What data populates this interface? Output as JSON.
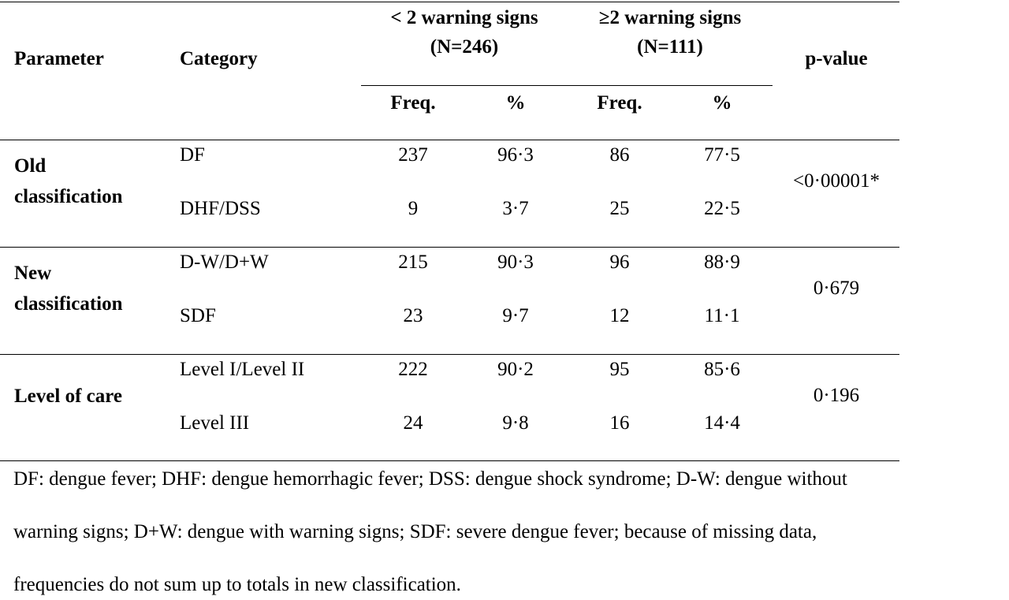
{
  "table": {
    "headers": {
      "parameter": "Parameter",
      "category": "Category",
      "group1_line1": "< 2 warning signs",
      "group1_line2": "(N=246)",
      "group2_line1": "≥2 warning signs",
      "group2_line2": "(N=111)",
      "pvalue": "p-value",
      "freq1": "Freq.",
      "pct1": "%",
      "freq2": "Freq.",
      "pct2": "%"
    },
    "sections": [
      {
        "parameter_line1": "Old",
        "parameter_line2": "classification",
        "pvalue": "<0·00001*",
        "rows": [
          {
            "category": "DF",
            "freq1": "237",
            "pct1": "96·3",
            "freq2": "86",
            "pct2": "77·5"
          },
          {
            "category": "DHF/DSS",
            "freq1": "9",
            "pct1": "3·7",
            "freq2": "25",
            "pct2": "22·5"
          }
        ]
      },
      {
        "parameter_line1": "New",
        "parameter_line2": "classification",
        "pvalue": "0·679",
        "rows": [
          {
            "category": "D-W/D+W",
            "freq1": "215",
            "pct1": "90·3",
            "freq2": "96",
            "pct2": "88·9"
          },
          {
            "category": "SDF",
            "freq1": "23",
            "pct1": "9·7",
            "freq2": "12",
            "pct2": "11·1"
          }
        ]
      },
      {
        "parameter": "Level of care",
        "pvalue": "0·196",
        "rows": [
          {
            "category": "Level I/Level II",
            "freq1": "222",
            "pct1": "90·2",
            "freq2": "95",
            "pct2": "85·6"
          },
          {
            "category": "Level III",
            "freq1": "24",
            "pct1": "9·8",
            "freq2": "16",
            "pct2": "14·4"
          }
        ]
      }
    ]
  },
  "footnote": {
    "line1": "DF: dengue fever; DHF: dengue hemorrhagic fever; DSS: dengue shock syndrome; D-W: dengue without",
    "line2": "warning signs; D+W: dengue with warning signs; SDF: severe dengue fever; because of missing data,",
    "line3": "frequencies do not sum up to totals in new classification."
  }
}
